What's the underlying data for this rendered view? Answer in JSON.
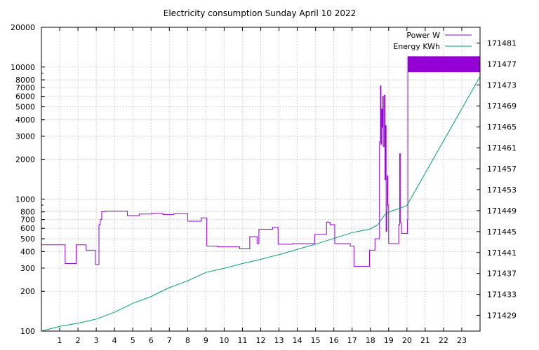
{
  "chart_data": {
    "type": "line",
    "title": "Electricity consumption Sunday April 10 2022",
    "xlabel": "",
    "ylabel": "",
    "y2label": "",
    "x_ticks": [
      "1",
      "2",
      "3",
      "4",
      "5",
      "6",
      "7",
      "8",
      "9",
      "10",
      "11",
      "12",
      "13",
      "14",
      "15",
      "16",
      "17",
      "18",
      "19",
      "20",
      "21",
      "22",
      "23"
    ],
    "xlim": [
      0,
      24
    ],
    "ylim": [
      100,
      20000
    ],
    "y_scale": "log",
    "y_ticks": [
      "100",
      "200",
      "300",
      "400",
      "500",
      "600",
      "700",
      "800",
      "1000",
      "2000",
      "3000",
      "4000",
      "5000",
      "6000",
      "7000",
      "8000",
      "10000",
      "20000"
    ],
    "y2lim": [
      171426,
      171484
    ],
    "y2_ticks": [
      "171429",
      "171433",
      "171437",
      "171441",
      "171445",
      "171449",
      "171453",
      "171457",
      "171461",
      "171465",
      "171469",
      "171473",
      "171477",
      "171481"
    ],
    "grid": true,
    "legend_position": "top-right",
    "series": [
      {
        "name": "Power W",
        "axis": "left",
        "color": "#9400d3",
        "step": true,
        "points": [
          [
            0.0,
            450
          ],
          [
            1.2,
            450
          ],
          [
            1.3,
            325
          ],
          [
            1.85,
            325
          ],
          [
            1.9,
            450
          ],
          [
            2.4,
            450
          ],
          [
            2.45,
            410
          ],
          [
            2.9,
            410
          ],
          [
            2.95,
            320
          ],
          [
            3.1,
            320
          ],
          [
            3.15,
            640
          ],
          [
            3.22,
            700
          ],
          [
            3.3,
            800
          ],
          [
            3.45,
            810
          ],
          [
            4.65,
            810
          ],
          [
            4.7,
            750
          ],
          [
            5.3,
            750
          ],
          [
            5.35,
            770
          ],
          [
            6.0,
            770
          ],
          [
            6.05,
            780
          ],
          [
            6.6,
            780
          ],
          [
            6.65,
            765
          ],
          [
            7.2,
            765
          ],
          [
            7.25,
            775
          ],
          [
            7.95,
            775
          ],
          [
            8.0,
            680
          ],
          [
            8.7,
            680
          ],
          [
            8.75,
            720
          ],
          [
            9.0,
            720
          ],
          [
            9.05,
            440
          ],
          [
            9.6,
            440
          ],
          [
            9.65,
            435
          ],
          [
            10.8,
            435
          ],
          [
            10.85,
            420
          ],
          [
            11.35,
            420
          ],
          [
            11.4,
            520
          ],
          [
            11.75,
            520
          ],
          [
            11.8,
            460
          ],
          [
            11.85,
            460
          ],
          [
            11.9,
            590
          ],
          [
            12.6,
            590
          ],
          [
            12.65,
            610
          ],
          [
            12.9,
            610
          ],
          [
            12.95,
            455
          ],
          [
            13.7,
            455
          ],
          [
            13.75,
            460
          ],
          [
            14.9,
            460
          ],
          [
            14.95,
            540
          ],
          [
            15.55,
            540
          ],
          [
            15.6,
            670
          ],
          [
            15.75,
            660
          ],
          [
            15.8,
            640
          ],
          [
            16.0,
            640
          ],
          [
            16.05,
            460
          ],
          [
            16.85,
            460
          ],
          [
            16.9,
            440
          ],
          [
            17.05,
            440
          ],
          [
            17.1,
            310
          ],
          [
            17.9,
            310
          ],
          [
            17.95,
            410
          ],
          [
            18.2,
            410
          ],
          [
            18.25,
            500
          ],
          [
            18.45,
            500
          ],
          [
            18.5,
            2700
          ],
          [
            18.55,
            7200
          ],
          [
            18.58,
            2600
          ],
          [
            18.62,
            4800
          ],
          [
            18.65,
            3500
          ],
          [
            18.68,
            6000
          ],
          [
            18.7,
            2500
          ],
          [
            18.75,
            6100
          ],
          [
            18.8,
            1400
          ],
          [
            18.83,
            3600
          ],
          [
            18.86,
            570
          ],
          [
            18.9,
            800
          ],
          [
            18.92,
            1500
          ],
          [
            18.95,
            900
          ],
          [
            19.0,
            460
          ],
          [
            19.5,
            460
          ],
          [
            19.55,
            640
          ],
          [
            19.6,
            2200
          ],
          [
            19.65,
            660
          ],
          [
            19.7,
            550
          ],
          [
            20.0,
            550
          ],
          [
            20.03,
            700
          ],
          [
            20.05,
            12000
          ],
          [
            24.0,
            12000
          ],
          [
            24.0,
            9200
          ],
          [
            20.05,
            9200
          ]
        ]
      },
      {
        "name": "Energy KWh",
        "axis": "right",
        "color": "#009e73",
        "step": false,
        "points": [
          [
            0.0,
            171426.0
          ],
          [
            1.0,
            171426.9
          ],
          [
            2.0,
            171427.5
          ],
          [
            3.0,
            171428.3
          ],
          [
            4.0,
            171429.6
          ],
          [
            5.0,
            171431.3
          ],
          [
            6.0,
            171432.6
          ],
          [
            7.0,
            171434.3
          ],
          [
            8.0,
            171435.6
          ],
          [
            9.0,
            171437.2
          ],
          [
            10.0,
            171438.0
          ],
          [
            11.0,
            171438.9
          ],
          [
            12.0,
            171439.7
          ],
          [
            13.0,
            171440.6
          ],
          [
            14.0,
            171441.6
          ],
          [
            15.0,
            171442.6
          ],
          [
            16.0,
            171443.7
          ],
          [
            17.0,
            171444.8
          ],
          [
            18.0,
            171445.5
          ],
          [
            18.4,
            171446.3
          ],
          [
            18.8,
            171448.3
          ],
          [
            19.2,
            171449.0
          ],
          [
            19.6,
            171449.4
          ],
          [
            20.0,
            171450.0
          ],
          [
            24.0,
            171474.6
          ]
        ]
      }
    ]
  }
}
